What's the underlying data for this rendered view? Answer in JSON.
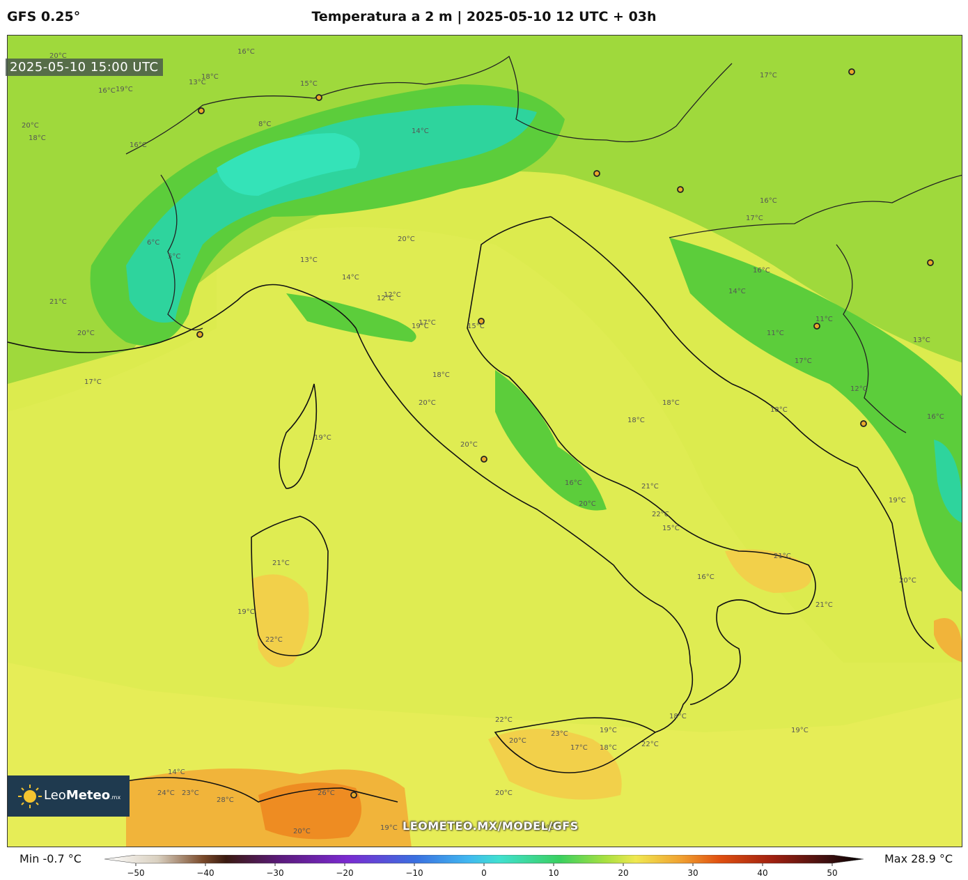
{
  "header": {
    "model": "GFS 0.25°",
    "title": "Temperatura a 2 m | 2025-05-10 12 UTC + 03h"
  },
  "map": {
    "valid_time": "2025-05-10 15:00 UTC",
    "watermark_url": "LEOMETEO.MX/MODEL/GFS",
    "logo": {
      "name_light": "Leo",
      "name_bold": "Meteo",
      "suffix": ".mx"
    },
    "contour_labels": [
      "20°C",
      "16°C",
      "15°C",
      "13°C",
      "16°C",
      "18°C",
      "20°C",
      "19°C",
      "18°C",
      "16°C",
      "17°C",
      "6°C",
      "5°C",
      "8°C",
      "14°C",
      "12°C",
      "17°C",
      "20°C",
      "21°C",
      "20°C",
      "17°C",
      "18°C",
      "20°C",
      "19°C",
      "14°C",
      "13°C",
      "12°C",
      "15°C",
      "18°C",
      "18°C",
      "16°C",
      "17°C",
      "16°C",
      "14°C",
      "11°C",
      "11°C",
      "12°C",
      "13°C",
      "16°C",
      "17°C",
      "18°C",
      "19°C",
      "16°C",
      "20°C",
      "21°C",
      "22°C",
      "20°C",
      "21°C",
      "15°C",
      "16°C",
      "21°C",
      "20°C",
      "19°C",
      "18°C",
      "21°C",
      "19°C",
      "22°C",
      "22°C",
      "20°C",
      "23°C",
      "17°C",
      "18°C",
      "19°C",
      "22°C",
      "24°C",
      "23°C",
      "28°C",
      "26°C",
      "20°C",
      "19°C",
      "20°C",
      "14°C",
      "20°C",
      "19°C"
    ],
    "colors": {
      "sea_yellow": "#e9ec58",
      "green": "#59c93a",
      "cyan": "#2fd0a0",
      "orange": "#f0a72c"
    }
  },
  "colorbar": {
    "min_label": "Min -0.7 °C",
    "max_label": "Max 28.9 °C",
    "ticks": [
      "−50",
      "−40",
      "−30",
      "−20",
      "−10",
      "0",
      "10",
      "20",
      "30",
      "40",
      "50"
    ],
    "range": [
      -50,
      50
    ]
  }
}
